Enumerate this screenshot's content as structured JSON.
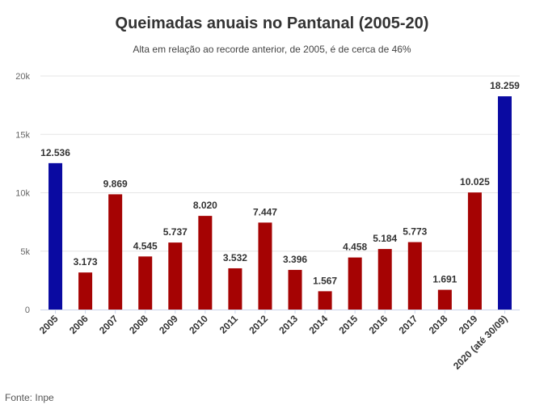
{
  "chart_data": {
    "type": "bar",
    "title": "Queimadas anuais no Pantanal (2005-20)",
    "subtitle": "Alta em relação ao recorde anterior, de 2005, é de cerca de 46%",
    "source": "Fonte: Inpe",
    "categories": [
      "2005",
      "2006",
      "2007",
      "2008",
      "2009",
      "2010",
      "2011",
      "2012",
      "2013",
      "2014",
      "2015",
      "2016",
      "2017",
      "2018",
      "2019",
      "2020 (até 30/09)"
    ],
    "values": [
      12536,
      3173,
      9869,
      4545,
      5737,
      8020,
      3532,
      7447,
      3396,
      1567,
      4458,
      5184,
      5773,
      1691,
      10025,
      18259
    ],
    "data_labels": [
      "12.536",
      "3.173",
      "9.869",
      "4.545",
      "5.737",
      "8.020",
      "3.532",
      "7.447",
      "3.396",
      "1.567",
      "4.458",
      "5.184",
      "5.773",
      "1.691",
      "10.025",
      "18.259"
    ],
    "highlight": [
      true,
      false,
      false,
      false,
      false,
      false,
      false,
      false,
      false,
      false,
      false,
      false,
      false,
      false,
      false,
      true
    ],
    "colors": {
      "highlight": "#0a0aa1",
      "default": "#a50303"
    },
    "yticks": [
      0,
      5000,
      10000,
      15000,
      20000
    ],
    "ytick_labels": [
      "0",
      "5k",
      "10k",
      "15k",
      "20k"
    ],
    "ylim": [
      0,
      20000
    ],
    "grid": true
  }
}
